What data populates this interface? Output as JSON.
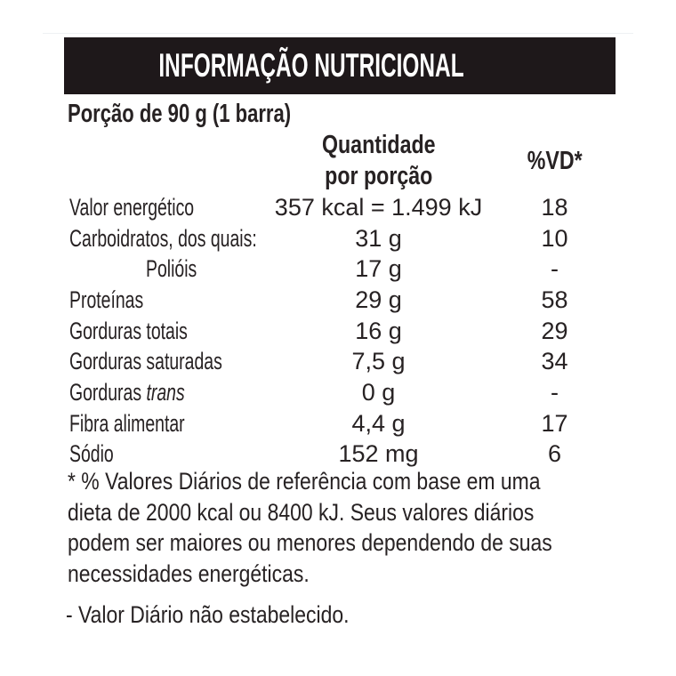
{
  "title": "INFORMAÇÃO NUTRICIONAL",
  "serving": "Porção de 90 g (1 barra)",
  "columns": {
    "quantity_lines": [
      "Quantidade",
      "por porção"
    ],
    "daily_value": "%VD*"
  },
  "rows": [
    {
      "name": "Valor energético",
      "italic": "",
      "quantity": "357 kcal = 1.499 kJ",
      "dv": "18",
      "indent": false
    },
    {
      "name": "Carboidratos, dos quais:",
      "italic": "",
      "quantity": "31 g",
      "dv": "10",
      "indent": false
    },
    {
      "name": "Polióis",
      "italic": "",
      "quantity": "17 g",
      "dv": "-",
      "indent": true
    },
    {
      "name": "Proteínas",
      "italic": "",
      "quantity": "29 g",
      "dv": "58",
      "indent": false
    },
    {
      "name": "Gorduras totais",
      "italic": "",
      "quantity": "16 g",
      "dv": "29",
      "indent": false
    },
    {
      "name": "Gorduras saturadas",
      "italic": "",
      "quantity": "7,5 g",
      "dv": "34",
      "indent": false
    },
    {
      "name": "Gorduras ",
      "italic": "trans",
      "quantity": "0 g",
      "dv": "-",
      "indent": false
    },
    {
      "name": "Fibra alimentar",
      "italic": "",
      "quantity": "4,4 g",
      "dv": "17",
      "indent": false
    },
    {
      "name": "Sódio",
      "italic": "",
      "quantity": "152 mg",
      "dv": "6",
      "indent": false
    }
  ],
  "footnotes": {
    "daily_values_lines": [
      "* % Valores Diários de referência com base em uma",
      "dieta de 2000 kcal ou 8400 kJ. Seus valores diários",
      "podem ser maiores ou menores dependendo de suas",
      "necessidades energéticas."
    ],
    "not_established": "- Valor Diário não estabelecido."
  },
  "colors": {
    "header_bg": "#1e181a",
    "header_text": "#ffffff",
    "text": "#272223",
    "background": "#ffffff"
  }
}
